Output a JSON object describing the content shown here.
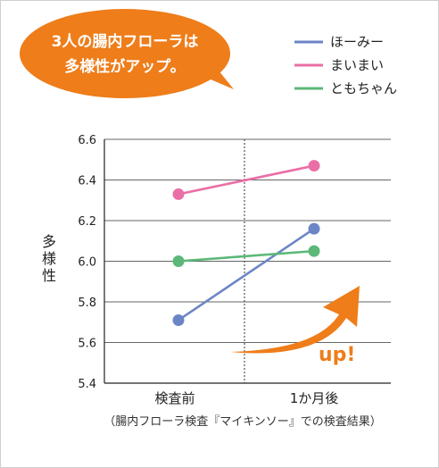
{
  "callout": {
    "line1": "3人の腸内フローラは",
    "line2": "多様性がアップ。",
    "color": "#ee7d1a"
  },
  "chart_data": {
    "type": "line",
    "x": [
      "検査前",
      "1か月後"
    ],
    "ylabel": "多様性",
    "ylim": [
      5.4,
      6.6
    ],
    "yticks": [
      "6.6",
      "6.4",
      "6.2",
      "6.0",
      "5.8",
      "5.6",
      "5.4"
    ],
    "ytick_values": [
      6.6,
      6.4,
      6.2,
      6.0,
      5.8,
      5.6,
      5.4
    ],
    "grid": true,
    "legend_position": "top-right",
    "series": [
      {
        "name": "ほーみー",
        "values": [
          5.71,
          6.16
        ],
        "color": "#6b86c6"
      },
      {
        "name": "まいまい",
        "values": [
          6.33,
          6.47
        ],
        "color": "#ea6fa6"
      },
      {
        "name": "ともちゃん",
        "values": [
          6.0,
          6.05
        ],
        "color": "#5cb878"
      }
    ],
    "annotation": "up!",
    "footnote": "（腸内フローラ検査『マイキンソー』での検査結果）"
  }
}
